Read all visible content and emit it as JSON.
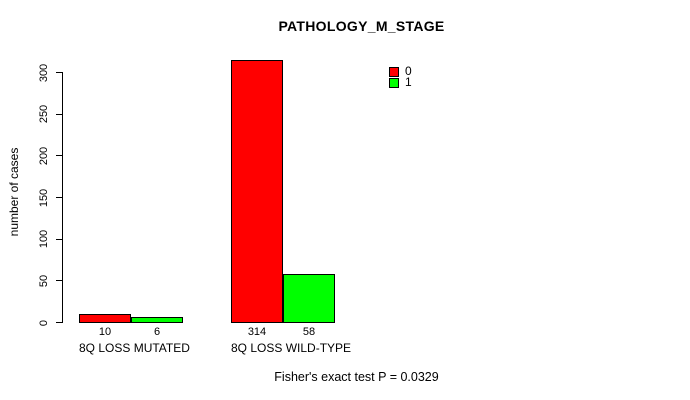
{
  "chart_data": {
    "type": "bar",
    "title": "PATHOLOGY_M_STAGE",
    "ylabel": "number of cases",
    "xlabel": "",
    "categories": [
      "8Q LOSS MUTATED",
      "8Q LOSS WILD-TYPE"
    ],
    "series": [
      {
        "name": "0",
        "color": "#FF0000",
        "values": [
          10,
          314
        ]
      },
      {
        "name": "1",
        "color": "#00FF00",
        "values": [
          6,
          58
        ]
      }
    ],
    "ylim": [
      0,
      300
    ],
    "yticks": [
      0,
      50,
      100,
      150,
      200,
      250,
      300
    ],
    "grid": false,
    "legend_position": "top-right",
    "annotation": "Fisher's exact test P = 0.0329"
  }
}
